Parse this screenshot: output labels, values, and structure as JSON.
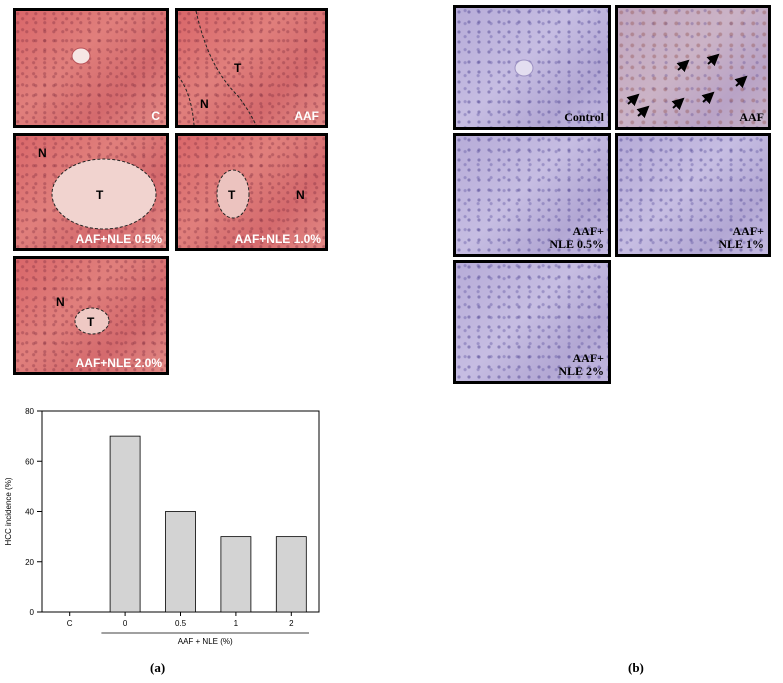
{
  "panel_a": {
    "images": [
      {
        "id": "c",
        "label": "C",
        "marks": []
      },
      {
        "id": "aaf",
        "label": "AAF",
        "marks": [
          "T",
          "N"
        ]
      },
      {
        "id": "aaf-nle-05",
        "label": "AAF+NLE 0.5%",
        "marks": [
          "N",
          "T"
        ]
      },
      {
        "id": "aaf-nle-10",
        "label": "AAF+NLE 1.0%",
        "marks": [
          "T",
          "N"
        ]
      },
      {
        "id": "aaf-nle-20",
        "label": "AAF+NLE 2.0%",
        "marks": [
          "N",
          "T"
        ]
      }
    ],
    "caption": "(a)"
  },
  "panel_b": {
    "images": [
      {
        "id": "control",
        "label": "Control"
      },
      {
        "id": "aaf",
        "label": "AAF"
      },
      {
        "id": "aaf-nle-05",
        "label": "AAF+\nNLE 0.5%"
      },
      {
        "id": "aaf-nle-1",
        "label": "AAF+\nNLE 1%"
      },
      {
        "id": "aaf-nle-2",
        "label": "AAF+\nNLE 2%"
      }
    ],
    "caption": "(b)"
  },
  "chart_data": {
    "type": "bar",
    "categories": [
      "C",
      "0",
      "0.5",
      "1",
      "2"
    ],
    "values": [
      0,
      70,
      40,
      30,
      30
    ],
    "title": "",
    "xlabel": "AAF + NLE (%)",
    "ylabel": "HCC incidence (%)",
    "ylim": [
      0,
      80
    ],
    "yticks": [
      0,
      20,
      40,
      60,
      80
    ],
    "grid": false,
    "bar_color": "#d3d3d3"
  }
}
